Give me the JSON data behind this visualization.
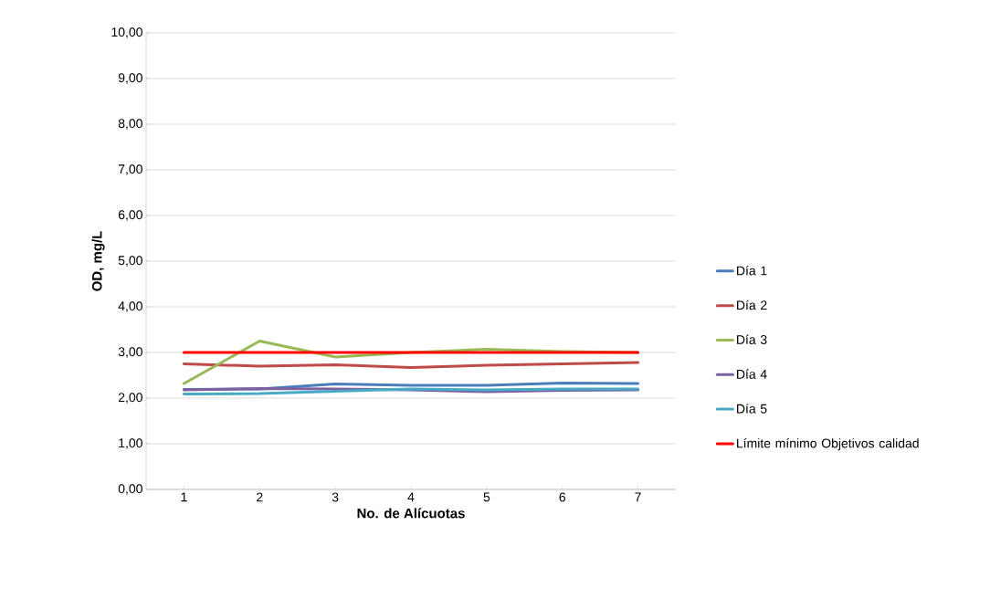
{
  "chart_data": {
    "type": "line",
    "xlabel": "No.  de Alícuotas",
    "ylabel": "OD, mg/L",
    "categories": [
      "1",
      "2",
      "3",
      "4",
      "5",
      "6",
      "7"
    ],
    "series": [
      {
        "name": "Día 1",
        "color": "#4a7ebb",
        "values": [
          2.19,
          2.2,
          2.31,
          2.28,
          2.28,
          2.33,
          2.32
        ]
      },
      {
        "name": "Día 2",
        "color": "#be4b48",
        "values": [
          2.75,
          2.7,
          2.73,
          2.67,
          2.72,
          2.75,
          2.78
        ]
      },
      {
        "name": "Día 3",
        "color": "#98b954",
        "values": [
          2.32,
          3.25,
          2.9,
          3.0,
          3.07,
          3.02,
          3.0
        ]
      },
      {
        "name": "Día 4",
        "color": "#7d60a0",
        "values": [
          2.18,
          2.21,
          2.2,
          2.18,
          2.14,
          2.17,
          2.18
        ]
      },
      {
        "name": "Día 5",
        "color": "#46aac5",
        "values": [
          2.09,
          2.1,
          2.15,
          2.2,
          2.18,
          2.2,
          2.2
        ]
      },
      {
        "name": "Límite mínimo Objetivos calidad",
        "color": "#ff0000",
        "values": [
          3.0,
          3.0,
          3.0,
          3.0,
          3.0,
          3.0,
          3.0
        ]
      }
    ],
    "ylim": [
      0,
      10
    ],
    "yticks": [
      {
        "value": 0,
        "label": "0,00"
      },
      {
        "value": 1,
        "label": "1,00"
      },
      {
        "value": 2,
        "label": "2,00"
      },
      {
        "value": 3,
        "label": "3,00"
      },
      {
        "value": 4,
        "label": "4,00"
      },
      {
        "value": 5,
        "label": "5,00"
      },
      {
        "value": 6,
        "label": "6,00"
      },
      {
        "value": 7,
        "label": "7,00"
      },
      {
        "value": 8,
        "label": "8,00"
      },
      {
        "value": 9,
        "label": "9,00"
      },
      {
        "value": 10,
        "label": "10,00"
      }
    ],
    "grid": "y",
    "legend": "right",
    "marker": "none",
    "line_style": "solid"
  }
}
